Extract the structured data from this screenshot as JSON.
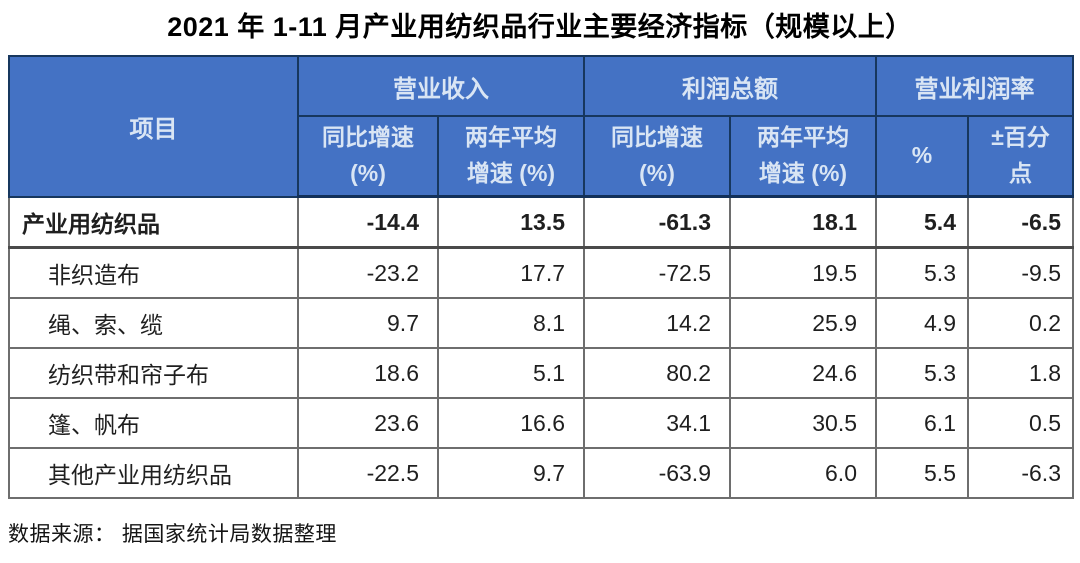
{
  "chart_data": {
    "type": "table",
    "title": "2021 年 1-11 月产业用纺织品行业主要经济指标（规模以上）",
    "corner_header": "项目",
    "column_groups": [
      {
        "label": "营业收入",
        "sub": [
          "同比增速\n(%)",
          "两年平均\n增速 (%)"
        ]
      },
      {
        "label": "利润总额",
        "sub": [
          "同比增速\n(%)",
          "两年平均\n增速 (%)"
        ]
      },
      {
        "label": "营业利润率",
        "sub": [
          "%",
          "±百分\n点"
        ]
      }
    ],
    "rows": [
      {
        "label": "产业用纺织品",
        "bold": true,
        "indent": false,
        "values": [
          "-14.4",
          "13.5",
          "-61.3",
          "18.1",
          "5.4",
          "-6.5"
        ]
      },
      {
        "label": "非织造布",
        "bold": false,
        "indent": true,
        "values": [
          "-23.2",
          "17.7",
          "-72.5",
          "19.5",
          "5.3",
          "-9.5"
        ]
      },
      {
        "label": "绳、索、缆",
        "bold": false,
        "indent": true,
        "values": [
          "9.7",
          "8.1",
          "14.2",
          "25.9",
          "4.9",
          "0.2"
        ]
      },
      {
        "label": "纺织带和帘子布",
        "bold": false,
        "indent": true,
        "values": [
          "18.6",
          "5.1",
          "80.2",
          "24.6",
          "5.3",
          "1.8"
        ]
      },
      {
        "label": "篷、帆布",
        "bold": false,
        "indent": true,
        "values": [
          "23.6",
          "16.6",
          "34.1",
          "30.5",
          "6.1",
          "0.5"
        ]
      },
      {
        "label": "其他产业用纺织品",
        "bold": false,
        "indent": true,
        "values": [
          "-22.5",
          "9.7",
          "-63.9",
          "6.0",
          "5.5",
          "-6.3"
        ]
      }
    ],
    "source": "数据来源： 据国家统计局数据整理",
    "layout": {
      "grid": true,
      "legend": "none"
    },
    "colors": {
      "header_background": "#4472c4",
      "header_text": "#d9e5f4",
      "header_border": "#17375e",
      "grid_line": "#6e6e6e",
      "body_text": "#1f1f1f"
    }
  }
}
